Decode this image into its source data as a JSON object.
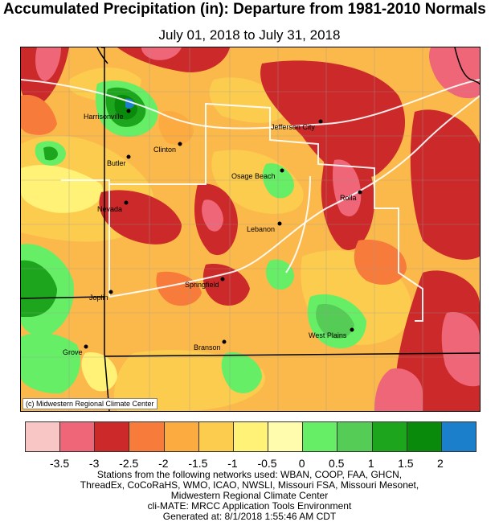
{
  "title": "Accumulated Precipitation (in): Departure from 1981-2010 Normals",
  "subtitle": "July 01, 2018 to July 31, 2018",
  "map": {
    "credit": "(c) Midwestern Regional Climate Center",
    "cities": [
      {
        "name": "Harrisonville"
      },
      {
        "name": "Jefferson City"
      },
      {
        "name": "Clinton"
      },
      {
        "name": "Butler"
      },
      {
        "name": "Osage Beach"
      },
      {
        "name": "Rolla"
      },
      {
        "name": "Nevada"
      },
      {
        "name": "Lebanon"
      },
      {
        "name": "Springfield"
      },
      {
        "name": "Joplin"
      },
      {
        "name": "West Plains"
      },
      {
        "name": "Branson"
      },
      {
        "name": "Grove"
      }
    ]
  },
  "legend": {
    "colors": [
      "#f9c6c6",
      "#ee6677",
      "#cc2a2a",
      "#f77b3b",
      "#fbab3f",
      "#fccc4e",
      "#fff276",
      "#fffcae",
      "#66ee66",
      "#55cc55",
      "#1da61d",
      "#0a8a0a",
      "#1c7fcc"
    ],
    "ticks": [
      "-3.5",
      "-3",
      "-2.5",
      "-2",
      "-1.5",
      "-1",
      "-0.5",
      "0",
      "0.5",
      "1",
      "1.5",
      "2"
    ]
  },
  "footer": {
    "lines": [
      "Stations from the following networks used: WBAN, COOP, FAA, GHCN,",
      "ThreadEx, CoCoRaHS, WMO, ICAO, NWSLI, Missouri FSA, Missouri Mesonet,",
      "Midwestern Regional Climate Center",
      "cli-MATE: MRCC Application Tools Environment",
      "Generated at: 8/1/2018 1:55:46 AM CDT"
    ]
  }
}
